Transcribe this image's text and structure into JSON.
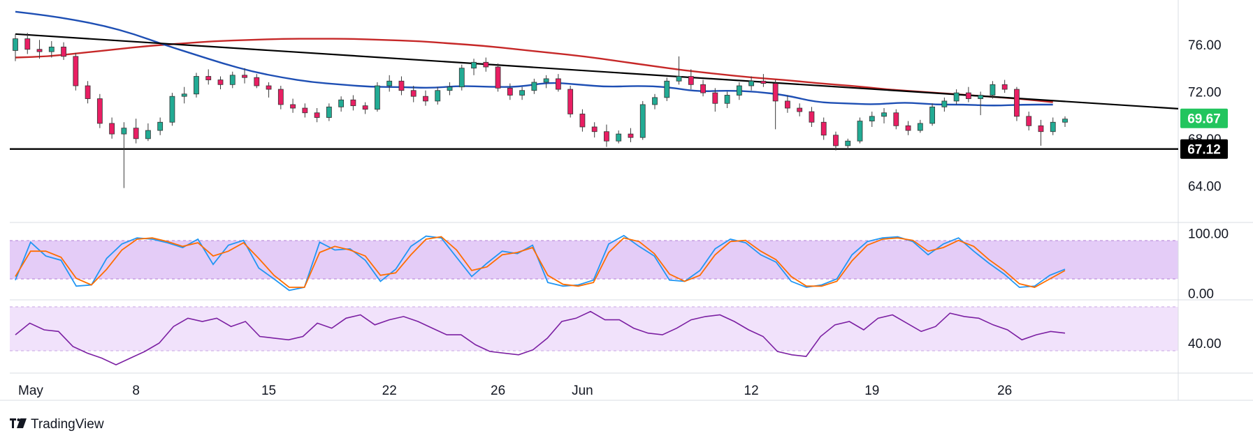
{
  "brand": {
    "name": "TradingView",
    "logo_icon": "tradingview-logo-icon"
  },
  "colors": {
    "candle_up": "#22ab94",
    "candle_down": "#e91e63",
    "wick": "#3a3a3a",
    "sma_long": "#c62828",
    "sma_short": "#1e4fb4",
    "trendline": "#000000",
    "stoch_k": "#2196f3",
    "stoch_d": "#ff6d00",
    "stoch_band": "#e4ccf7",
    "rsi_line": "#7b1fa2",
    "rsi_band": "#f1e2fb",
    "current_price_badge": "#22c55e",
    "support_badge": "#000000"
  },
  "chart_data": [
    {
      "type": "candlestick",
      "panel": "price",
      "ylim": [
        62.0,
        79.5
      ],
      "y_ticks": [
        "64.00",
        "68.00",
        "72.00",
        "76.00"
      ],
      "current_price": "69.67",
      "support_level": {
        "value": 67.12,
        "label": "67.12"
      },
      "resistance_trendline": {
        "start_bar": 0,
        "start": 76.9,
        "end_bar": 85,
        "end": 71.3
      },
      "ohlc": [
        [
          75.5,
          76.9,
          74.6,
          76.5
        ],
        [
          76.5,
          77.0,
          75.2,
          75.6
        ],
        [
          75.6,
          76.4,
          74.8,
          75.4
        ],
        [
          75.4,
          76.3,
          74.9,
          75.8
        ],
        [
          75.8,
          76.2,
          74.7,
          75.0
        ],
        [
          75.0,
          75.3,
          72.1,
          72.5
        ],
        [
          72.5,
          72.9,
          71.0,
          71.4
        ],
        [
          71.4,
          71.8,
          68.9,
          69.3
        ],
        [
          69.3,
          69.8,
          68.0,
          68.4
        ],
        [
          68.4,
          69.4,
          63.8,
          68.9
        ],
        [
          68.9,
          69.7,
          67.6,
          68.0
        ],
        [
          68.0,
          69.3,
          67.8,
          68.7
        ],
        [
          68.7,
          69.8,
          68.3,
          69.4
        ],
        [
          69.4,
          71.9,
          69.1,
          71.6
        ],
        [
          71.6,
          72.4,
          71.0,
          71.8
        ],
        [
          71.8,
          73.6,
          71.5,
          73.3
        ],
        [
          73.3,
          73.9,
          72.6,
          73.0
        ],
        [
          73.0,
          73.3,
          72.2,
          72.6
        ],
        [
          72.6,
          73.7,
          72.3,
          73.4
        ],
        [
          73.4,
          74.0,
          72.7,
          73.2
        ],
        [
          73.2,
          73.5,
          72.3,
          72.5
        ],
        [
          72.5,
          72.8,
          71.5,
          72.2
        ],
        [
          72.2,
          72.5,
          70.5,
          70.9
        ],
        [
          70.9,
          71.4,
          70.2,
          70.6
        ],
        [
          70.6,
          71.0,
          69.8,
          70.2
        ],
        [
          70.2,
          70.6,
          69.4,
          69.8
        ],
        [
          69.8,
          71.0,
          69.5,
          70.7
        ],
        [
          70.7,
          71.6,
          70.3,
          71.3
        ],
        [
          71.3,
          71.7,
          70.4,
          70.8
        ],
        [
          70.8,
          71.1,
          70.1,
          70.5
        ],
        [
          70.5,
          72.8,
          70.3,
          72.5
        ],
        [
          72.5,
          73.4,
          72.0,
          72.9
        ],
        [
          72.9,
          73.3,
          71.7,
          72.1
        ],
        [
          72.1,
          72.5,
          71.1,
          71.6
        ],
        [
          71.6,
          72.1,
          70.8,
          71.2
        ],
        [
          71.2,
          72.4,
          70.9,
          72.1
        ],
        [
          72.1,
          72.8,
          71.7,
          72.4
        ],
        [
          72.4,
          74.3,
          72.1,
          74.0
        ],
        [
          74.0,
          74.8,
          73.4,
          74.5
        ],
        [
          74.5,
          74.9,
          73.7,
          74.1
        ],
        [
          74.1,
          74.4,
          72.0,
          72.3
        ],
        [
          72.3,
          72.7,
          71.3,
          71.7
        ],
        [
          71.7,
          72.4,
          71.3,
          72.1
        ],
        [
          72.1,
          73.1,
          71.8,
          72.8
        ],
        [
          72.8,
          73.4,
          72.3,
          73.1
        ],
        [
          73.1,
          73.5,
          72.0,
          72.2
        ],
        [
          72.2,
          72.5,
          69.8,
          70.1
        ],
        [
          70.1,
          70.5,
          68.6,
          69.0
        ],
        [
          69.0,
          69.4,
          68.1,
          68.6
        ],
        [
          68.6,
          69.2,
          67.3,
          67.8
        ],
        [
          67.8,
          68.7,
          67.6,
          68.4
        ],
        [
          68.4,
          68.9,
          67.7,
          68.1
        ],
        [
          68.1,
          71.2,
          67.9,
          70.9
        ],
        [
          70.9,
          71.8,
          70.5,
          71.5
        ],
        [
          71.5,
          73.2,
          71.2,
          72.9
        ],
        [
          72.9,
          75.0,
          72.6,
          73.3
        ],
        [
          73.3,
          73.9,
          72.2,
          72.6
        ],
        [
          72.6,
          73.0,
          71.6,
          71.9
        ],
        [
          71.9,
          72.3,
          70.3,
          71.0
        ],
        [
          71.0,
          72.0,
          70.6,
          71.7
        ],
        [
          71.7,
          72.8,
          71.3,
          72.5
        ],
        [
          72.5,
          73.3,
          72.1,
          72.9
        ],
        [
          72.9,
          73.5,
          72.4,
          72.7
        ],
        [
          72.7,
          73.0,
          68.8,
          71.2
        ],
        [
          71.2,
          71.7,
          70.2,
          70.6
        ],
        [
          70.6,
          71.0,
          69.9,
          70.3
        ],
        [
          70.3,
          70.7,
          69.0,
          69.4
        ],
        [
          69.4,
          69.8,
          67.9,
          68.3
        ],
        [
          68.3,
          68.6,
          67.0,
          67.4
        ],
        [
          67.4,
          68.0,
          67.1,
          67.8
        ],
        [
          67.8,
          69.8,
          67.6,
          69.5
        ],
        [
          69.5,
          70.3,
          69.0,
          69.9
        ],
        [
          69.9,
          70.6,
          69.3,
          70.2
        ],
        [
          70.2,
          70.5,
          68.8,
          69.1
        ],
        [
          69.1,
          69.5,
          68.3,
          68.7
        ],
        [
          68.7,
          69.6,
          68.5,
          69.3
        ],
        [
          69.3,
          71.0,
          69.1,
          70.7
        ],
        [
          70.7,
          71.5,
          70.3,
          71.2
        ],
        [
          71.2,
          72.2,
          70.9,
          71.9
        ],
        [
          71.9,
          72.4,
          71.1,
          71.4
        ],
        [
          71.4,
          72.0,
          70.0,
          71.7
        ],
        [
          71.7,
          72.9,
          71.4,
          72.6
        ],
        [
          72.6,
          73.0,
          71.9,
          72.2
        ],
        [
          72.2,
          72.4,
          69.5,
          69.9
        ],
        [
          69.9,
          70.3,
          68.7,
          69.1
        ],
        [
          69.1,
          69.6,
          67.4,
          68.6
        ],
        [
          68.6,
          69.8,
          68.3,
          69.4
        ],
        [
          69.4,
          69.9,
          69.0,
          69.67
        ]
      ],
      "sma_long": [
        74.9,
        75.0,
        75.3,
        75.6,
        75.9,
        76.1,
        76.3,
        76.4,
        76.5,
        76.5,
        76.5,
        76.4,
        76.3,
        76.1,
        75.9,
        75.6,
        75.3,
        75.0,
        74.6,
        74.2,
        73.8,
        73.5,
        73.2,
        73.0,
        72.7,
        72.5,
        72.2,
        72.0,
        71.8,
        71.6,
        71.4,
        71.1
      ],
      "sma_long_first_bar": 0,
      "sma_long_last_bar": 86,
      "sma_short": [
        78.8,
        78.5,
        78.1,
        77.6,
        76.9,
        76.0,
        75.2,
        74.4,
        73.7,
        73.2,
        72.8,
        72.6,
        72.4,
        72.4,
        72.3,
        72.5,
        72.4,
        72.4,
        72.8,
        72.6,
        72.4,
        72.5,
        72.4,
        72.0,
        72.1,
        72.0,
        71.7,
        71.1,
        71.0,
        70.9,
        71.1,
        70.9,
        70.9,
        70.8,
        70.9,
        70.9
      ],
      "sma_short_first_bar": 0,
      "sma_short_last_bar": 86
    },
    {
      "type": "line",
      "panel": "stochastic",
      "ylim": [
        -5,
        105
      ],
      "y_ticks": [
        "0.00",
        "100.00"
      ],
      "band": [
        20,
        80
      ],
      "series": [
        {
          "values": [
            22,
            85,
            62,
            55,
            12,
            14,
            58,
            82,
            92,
            90,
            84,
            76,
            90,
            48,
            80,
            88,
            42,
            24,
            5,
            10,
            85,
            72,
            74,
            55,
            20,
            40,
            78,
            95,
            92,
            60,
            28,
            50,
            70,
            66,
            80,
            18,
            12,
            14,
            22,
            82,
            96,
            78,
            62,
            22,
            20,
            38,
            74,
            90,
            84,
            64,
            52,
            20,
            10,
            14,
            24,
            64,
            86,
            92,
            94,
            86,
            64,
            82,
            92,
            70,
            50,
            32,
            10,
            12,
            30,
            40
          ]
        },
        {
          "values": [
            28,
            70,
            70,
            60,
            25,
            14,
            40,
            72,
            90,
            92,
            86,
            78,
            84,
            62,
            70,
            84,
            58,
            30,
            10,
            10,
            68,
            78,
            72,
            62,
            30,
            34,
            64,
            90,
            94,
            72,
            38,
            44,
            64,
            68,
            76,
            30,
            15,
            12,
            18,
            68,
            92,
            86,
            66,
            32,
            20,
            30,
            64,
            86,
            88,
            70,
            56,
            28,
            12,
            12,
            20,
            54,
            80,
            90,
            92,
            88,
            70,
            76,
            88,
            78,
            56,
            38,
            16,
            10,
            24,
            38
          ]
        }
      ]
    },
    {
      "type": "line",
      "panel": "rsi",
      "ylim": [
        22,
        66
      ],
      "y_ticks": [
        "40.00"
      ],
      "band": [
        30,
        60
      ],
      "series": [
        {
          "values": [
            45,
            52,
            48,
            47,
            38,
            34,
            31,
            27,
            31,
            35,
            40,
            50,
            55,
            53,
            55,
            50,
            53,
            44,
            43,
            42,
            44,
            52,
            49,
            55,
            57,
            51,
            54,
            56,
            53,
            49,
            45,
            45,
            39,
            35,
            34,
            33,
            36,
            43,
            53,
            55,
            59,
            54,
            54,
            49,
            46,
            45,
            49,
            54,
            56,
            57,
            53,
            48,
            44,
            35,
            33,
            32,
            44,
            51,
            53,
            48,
            55,
            57,
            52,
            47,
            50,
            58,
            56,
            55,
            51,
            48,
            42,
            45,
            47,
            46
          ]
        }
      ]
    }
  ],
  "x_axis": {
    "labels": [
      "May",
      "8",
      "15",
      "22",
      "26",
      "Jun",
      "12",
      "19",
      "26"
    ]
  }
}
